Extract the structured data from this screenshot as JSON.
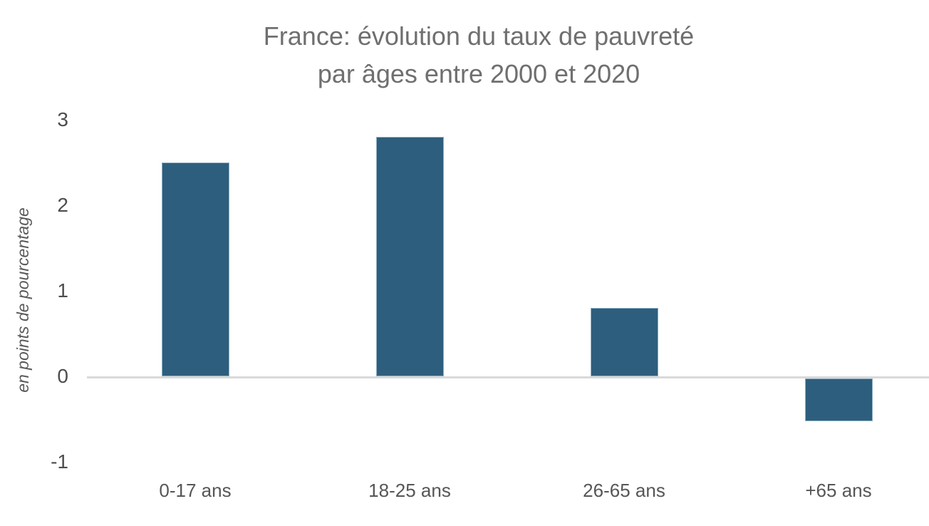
{
  "chart_data": {
    "type": "bar",
    "title_line1": "France: évolution du taux de pauvreté",
    "title_line2": "par âges entre 2000 et 2020",
    "ylabel": "en points de pourcentage",
    "xlabel": "",
    "categories": [
      "0-17 ans",
      "18-25 ans",
      "26-65 ans",
      "+65 ans"
    ],
    "values": [
      2.5,
      2.8,
      0.8,
      -0.5
    ],
    "yticks": [
      3,
      2,
      1,
      0,
      -1
    ],
    "ylim": [
      -1,
      3
    ],
    "grid": false,
    "legend_position": "none",
    "colors": {
      "bar_fill": "#2d5e7d",
      "bar_border": "#8fb0c3",
      "axis_line": "#d9d9d9",
      "title_text": "#6f6f6f",
      "tick_text": "#4d4d4d",
      "xlabel_text": "#565656",
      "ylabel_text": "#595959",
      "background": "#ffffff"
    }
  }
}
